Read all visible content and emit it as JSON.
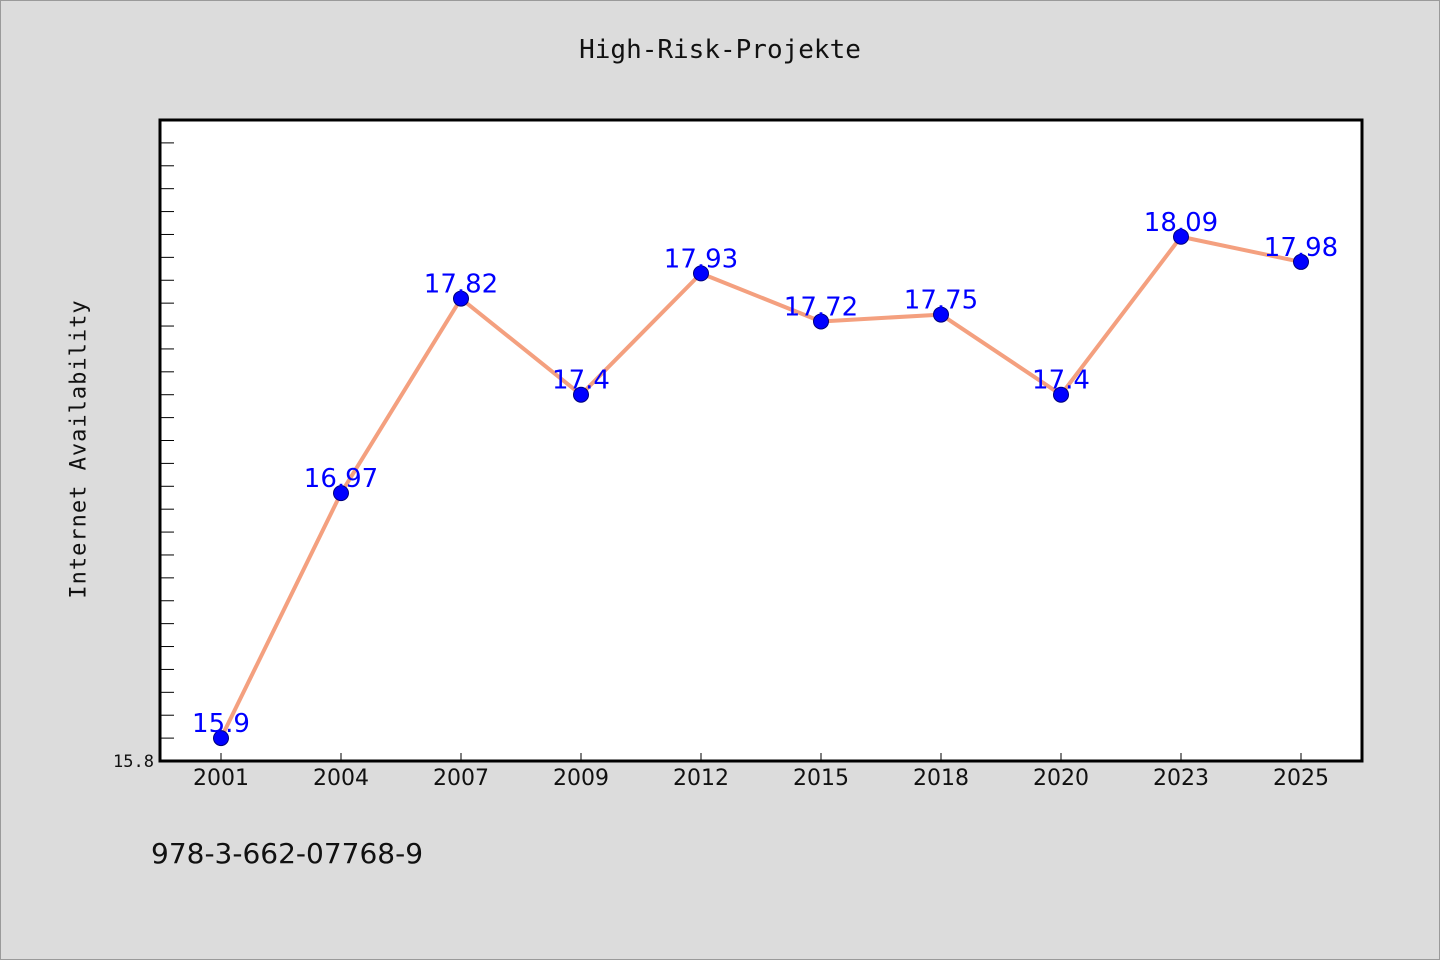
{
  "chart_data": {
    "type": "line",
    "title": "High-Risk-Projekte",
    "xlabel": "",
    "ylabel": "Internet Availability",
    "categories": [
      "2001",
      "2004",
      "2007",
      "2009",
      "2012",
      "2015",
      "2018",
      "2020",
      "2023",
      "2025"
    ],
    "series": [
      {
        "values": [
          15.9,
          16.97,
          17.82,
          17.4,
          17.93,
          17.72,
          17.75,
          17.4,
          18.09,
          17.98
        ]
      }
    ],
    "data_labels": [
      "15.9",
      "16.97",
      "17.82",
      "17.4",
      "17.93",
      "17.72",
      "17.75",
      "17.4",
      "18.09",
      "17.98"
    ],
    "ylim": [
      15.8,
      18.6
    ],
    "yticks_labeled": [
      "15.8"
    ],
    "grid": false,
    "legend": "none",
    "colors": {
      "line": "#f4a07f",
      "marker": "#0000ff",
      "marker_edge": "#00007a",
      "data_label": "#0000ff",
      "plot_bg": "#ffffff",
      "figure_bg": "#dcdcdc"
    }
  },
  "footer_text": "978-3-662-07768-9"
}
